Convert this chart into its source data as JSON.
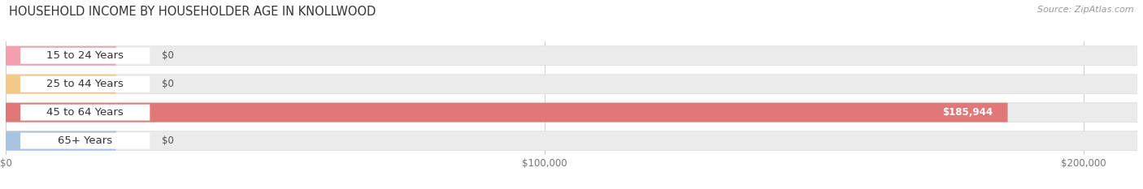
{
  "title": "HOUSEHOLD INCOME BY HOUSEHOLDER AGE IN KNOLLWOOD",
  "source": "Source: ZipAtlas.com",
  "categories": [
    "15 to 24 Years",
    "25 to 44 Years",
    "45 to 64 Years",
    "65+ Years"
  ],
  "values": [
    0,
    0,
    185944,
    0
  ],
  "bar_colors": [
    "#f2a0b0",
    "#f5c98a",
    "#e07878",
    "#a8c4e0"
  ],
  "xlim_max": 210000,
  "xticks": [
    0,
    100000,
    200000
  ],
  "xticklabels": [
    "$0",
    "$100,000",
    "$200,000"
  ],
  "value_labels": [
    "$0",
    "$0",
    "$185,944",
    "$0"
  ],
  "fig_bg_color": "#ffffff",
  "title_fontsize": 10.5,
  "source_fontsize": 8,
  "bar_label_fontsize": 9.5,
  "value_label_fontsize": 8.5,
  "row_bg_color": "#ebebeb",
  "row_bg_edge_color": "#dedede"
}
